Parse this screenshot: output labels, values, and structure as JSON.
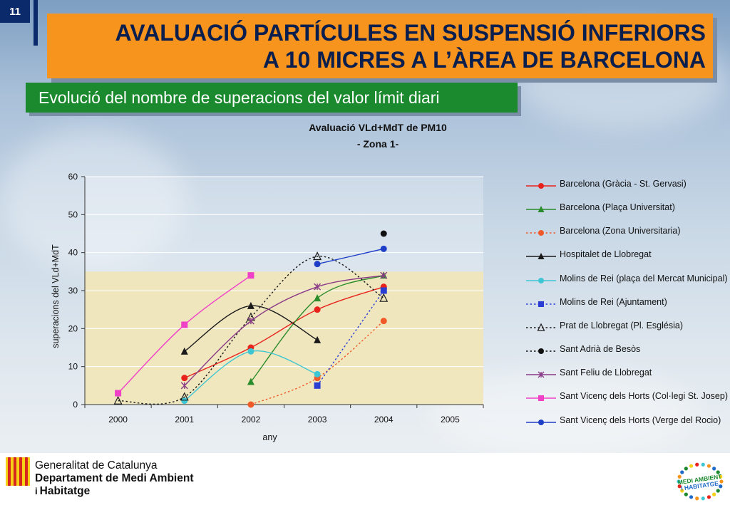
{
  "slide": {
    "number": "11",
    "title_line1": "AVALUACIÓ PARTÍCULES EN SUSPENSIÓ INFERIORS",
    "title_line2": "A 10 MICRES  A L’ÀREA DE BARCELONA",
    "subtitle": "Evolució del nombre de superacions del valor límit diari"
  },
  "chart_data": {
    "type": "line",
    "title_line1": "Avaluació VLd+MdT de PM10",
    "title_line2": "- Zona 1-",
    "xlabel": "any",
    "ylabel": "superacions del VLd+MdT",
    "categories": [
      "2000",
      "2001",
      "2002",
      "2003",
      "2004",
      "2005"
    ],
    "yticks": [
      "0",
      "10",
      "20",
      "30",
      "40",
      "50",
      "60"
    ],
    "ylim": [
      0,
      60
    ],
    "limit_band": 35,
    "limit_band_color": "#f1e6b8",
    "grid": true,
    "legend_position": "right",
    "series": [
      {
        "name": "Barcelona (Gràcia - St. Gervasi)",
        "color": "#e8231c",
        "marker": "circle",
        "dash": "solid",
        "values": [
          null,
          7,
          15,
          25,
          31,
          null
        ]
      },
      {
        "name": "Barcelona (Plaça Universitat)",
        "color": "#2a8c2a",
        "marker": "triangle",
        "dash": "solid",
        "values": [
          null,
          null,
          6,
          28,
          34,
          null
        ]
      },
      {
        "name": "Barcelona (Zona Universitaria)",
        "color": "#f05a28",
        "marker": "circle",
        "dash": "dotted",
        "values": [
          null,
          null,
          0,
          7,
          22,
          null
        ]
      },
      {
        "name": "Hospitalet de Llobregat",
        "color": "#1a1a1a",
        "marker": "triangle",
        "dash": "solid",
        "values": [
          null,
          14,
          26,
          17,
          null,
          null
        ]
      },
      {
        "name": "Molins de Rei (plaça del Mercat Municipal)",
        "color": "#3ec6d4",
        "marker": "circle",
        "dash": "solid",
        "values": [
          null,
          1,
          14,
          8,
          null,
          null
        ]
      },
      {
        "name": "Molins de Rei (Ajuntament)",
        "color": "#2a3ed4",
        "marker": "square",
        "dash": "dotted",
        "values": [
          null,
          null,
          null,
          5,
          30,
          null
        ]
      },
      {
        "name": "Prat de Llobregat (Pl. Església)",
        "color": "#1a1a1a",
        "marker": "triangle-open",
        "dash": "dotted",
        "values": [
          1,
          2,
          23,
          39,
          28,
          null
        ]
      },
      {
        "name": "Sant Adrià de Besòs",
        "color": "#111111",
        "marker": "circle",
        "dash": "dotted",
        "values": [
          null,
          null,
          null,
          null,
          45,
          null
        ]
      },
      {
        "name": "Sant Feliu de Llobregat",
        "color": "#8a3a86",
        "marker": "star",
        "dash": "solid",
        "values": [
          null,
          5,
          22,
          31,
          34,
          null
        ]
      },
      {
        "name": "Sant Vicenç dels Horts (Col·legi St. Josep)",
        "color": "#f040c8",
        "marker": "square",
        "dash": "solid",
        "values": [
          3,
          21,
          34,
          null,
          null,
          null
        ]
      },
      {
        "name": "Sant Vicenç dels Horts (Verge del Rocio)",
        "color": "#1e3ec8",
        "marker": "circle",
        "dash": "solid",
        "values": [
          null,
          null,
          null,
          37,
          41,
          null
        ]
      }
    ]
  },
  "footer": {
    "org_line1": "Generalitat de Catalunya",
    "org_line2": "Departament de Medi Ambient",
    "org_line3_prefix": "i",
    "org_line3": "Habitatge",
    "logo_text_line1": "MEDI AMBIENT",
    "logo_text_line2": "I HABITATGE"
  },
  "colors": {
    "title_bg": "#f7941d",
    "title_text": "#0b1f4f",
    "subtitle_bg": "#1b8a2e",
    "slide_num_bg": "#0b2a6b"
  }
}
